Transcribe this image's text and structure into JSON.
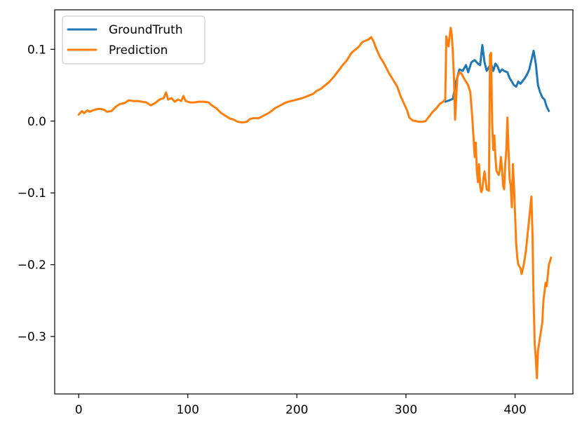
{
  "chart_data": {
    "type": "line",
    "title": "",
    "xlabel": "",
    "ylabel": "",
    "xlim": [
      -22,
      453
    ],
    "ylim": [
      -0.38,
      0.155
    ],
    "x_ticks": [
      0,
      100,
      200,
      300,
      400
    ],
    "x_tick_labels": [
      "0",
      "100",
      "200",
      "300",
      "400"
    ],
    "y_ticks": [
      0.1,
      0.0,
      -0.1,
      -0.2,
      -0.3
    ],
    "y_tick_labels": [
      "0.1",
      "0.0",
      "−0.1",
      "−0.2",
      "−0.3"
    ],
    "grid": false,
    "legend_position": "top-left",
    "series": [
      {
        "name": "GroundTruth",
        "color": "#1f77b4",
        "points": [
          [
            336,
            0.027
          ],
          [
            340,
            0.029
          ],
          [
            343,
            0.031
          ],
          [
            346,
            0.055
          ],
          [
            349,
            0.072
          ],
          [
            352,
            0.07
          ],
          [
            355,
            0.078
          ],
          [
            357,
            0.068
          ],
          [
            360,
            0.082
          ],
          [
            363,
            0.085
          ],
          [
            366,
            0.08
          ],
          [
            368,
            0.078
          ],
          [
            370,
            0.106
          ],
          [
            372,
            0.082
          ],
          [
            374,
            0.07
          ],
          [
            376,
            0.075
          ],
          [
            378,
            0.08
          ],
          [
            380,
            0.07
          ],
          [
            382,
            0.08
          ],
          [
            384,
            0.076
          ],
          [
            386,
            0.068
          ],
          [
            388,
            0.072
          ],
          [
            390,
            0.07
          ],
          [
            393,
            0.068
          ],
          [
            395,
            0.06
          ],
          [
            397,
            0.055
          ],
          [
            399,
            0.05
          ],
          [
            401,
            0.048
          ],
          [
            403,
            0.055
          ],
          [
            405,
            0.052
          ],
          [
            407,
            0.056
          ],
          [
            409,
            0.06
          ],
          [
            411,
            0.065
          ],
          [
            413,
            0.072
          ],
          [
            415,
            0.085
          ],
          [
            417,
            0.098
          ],
          [
            419,
            0.08
          ],
          [
            421,
            0.05
          ],
          [
            423,
            0.04
          ],
          [
            425,
            0.033
          ],
          [
            427,
            0.03
          ],
          [
            429,
            0.02
          ],
          [
            431,
            0.014
          ]
        ]
      },
      {
        "name": "Prediction",
        "color": "#ff7f0e",
        "points": [
          [
            0,
            0.009
          ],
          [
            3,
            0.014
          ],
          [
            5,
            0.011
          ],
          [
            8,
            0.015
          ],
          [
            10,
            0.013
          ],
          [
            13,
            0.015
          ],
          [
            15,
            0.016
          ],
          [
            18,
            0.017
          ],
          [
            20,
            0.017
          ],
          [
            23,
            0.016
          ],
          [
            26,
            0.013
          ],
          [
            30,
            0.014
          ],
          [
            34,
            0.02
          ],
          [
            38,
            0.024
          ],
          [
            42,
            0.025
          ],
          [
            46,
            0.029
          ],
          [
            50,
            0.028
          ],
          [
            54,
            0.028
          ],
          [
            58,
            0.027
          ],
          [
            62,
            0.026
          ],
          [
            66,
            0.022
          ],
          [
            70,
            0.025
          ],
          [
            74,
            0.03
          ],
          [
            78,
            0.032
          ],
          [
            80,
            0.04
          ],
          [
            82,
            0.03
          ],
          [
            85,
            0.032
          ],
          [
            88,
            0.027
          ],
          [
            91,
            0.03
          ],
          [
            94,
            0.028
          ],
          [
            96,
            0.035
          ],
          [
            98,
            0.028
          ],
          [
            102,
            0.026
          ],
          [
            106,
            0.026
          ],
          [
            110,
            0.027
          ],
          [
            115,
            0.027
          ],
          [
            119,
            0.026
          ],
          [
            122,
            0.022
          ],
          [
            126,
            0.018
          ],
          [
            130,
            0.012
          ],
          [
            134,
            0.008
          ],
          [
            138,
            0.004
          ],
          [
            142,
            0.002
          ],
          [
            146,
            -0.001
          ],
          [
            150,
            -0.002
          ],
          [
            154,
            -0.001
          ],
          [
            157,
            0.003
          ],
          [
            160,
            0.004
          ],
          [
            165,
            0.004
          ],
          [
            170,
            0.008
          ],
          [
            175,
            0.012
          ],
          [
            180,
            0.018
          ],
          [
            185,
            0.022
          ],
          [
            190,
            0.026
          ],
          [
            195,
            0.028
          ],
          [
            200,
            0.03
          ],
          [
            205,
            0.032
          ],
          [
            210,
            0.035
          ],
          [
            215,
            0.038
          ],
          [
            218,
            0.042
          ],
          [
            222,
            0.045
          ],
          [
            226,
            0.05
          ],
          [
            230,
            0.055
          ],
          [
            234,
            0.062
          ],
          [
            238,
            0.07
          ],
          [
            242,
            0.078
          ],
          [
            246,
            0.085
          ],
          [
            250,
            0.095
          ],
          [
            254,
            0.1
          ],
          [
            257,
            0.104
          ],
          [
            260,
            0.11
          ],
          [
            263,
            0.112
          ],
          [
            266,
            0.114
          ],
          [
            268,
            0.117
          ],
          [
            270,
            0.112
          ],
          [
            273,
            0.1
          ],
          [
            276,
            0.09
          ],
          [
            280,
            0.08
          ],
          [
            284,
            0.068
          ],
          [
            288,
            0.058
          ],
          [
            292,
            0.048
          ],
          [
            295,
            0.035
          ],
          [
            298,
            0.025
          ],
          [
            301,
            0.015
          ],
          [
            303,
            0.005
          ],
          [
            306,
            0.001
          ],
          [
            309,
            0.0
          ],
          [
            312,
            -0.001
          ],
          [
            315,
            -0.001
          ],
          [
            318,
            0.0
          ],
          [
            321,
            0.006
          ],
          [
            324,
            0.012
          ],
          [
            328,
            0.018
          ],
          [
            331,
            0.024
          ],
          [
            334,
            0.027
          ],
          [
            336,
            0.03
          ],
          [
            337,
            0.118
          ],
          [
            338,
            0.11
          ],
          [
            339,
            0.104
          ],
          [
            340,
            0.118
          ],
          [
            341,
            0.13
          ],
          [
            342,
            0.12
          ],
          [
            343,
            0.095
          ],
          [
            344,
            0.06
          ],
          [
            345,
            0.002
          ],
          [
            346,
            0.03
          ],
          [
            347,
            0.06
          ],
          [
            349,
            0.068
          ],
          [
            351,
            0.066
          ],
          [
            353,
            0.06
          ],
          [
            355,
            0.055
          ],
          [
            357,
            0.05
          ],
          [
            359,
            0.04
          ],
          [
            361,
            0.0
          ],
          [
            363,
            -0.05
          ],
          [
            364,
            -0.03
          ],
          [
            365,
            -0.07
          ],
          [
            366,
            -0.085
          ],
          [
            367,
            -0.06
          ],
          [
            368,
            -0.09
          ],
          [
            369,
            -0.099
          ],
          [
            370,
            -0.095
          ],
          [
            371,
            -0.08
          ],
          [
            372,
            -0.07
          ],
          [
            374,
            -0.095
          ],
          [
            376,
            -0.097
          ],
          [
            377,
            0.092
          ],
          [
            378,
            0.095
          ],
          [
            379,
            -0.001
          ],
          [
            380,
            -0.04
          ],
          [
            381,
            -0.02
          ],
          [
            382,
            -0.05
          ],
          [
            383,
            -0.07
          ],
          [
            384,
            -0.072
          ],
          [
            385,
            -0.075
          ],
          [
            386,
            -0.068
          ],
          [
            387,
            -0.05
          ],
          [
            388,
            -0.065
          ],
          [
            389,
            -0.09
          ],
          [
            390,
            -0.095
          ],
          [
            391,
            -0.06
          ],
          [
            392,
            -0.04
          ],
          [
            393,
            0.005
          ],
          [
            394,
            -0.04
          ],
          [
            395,
            -0.08
          ],
          [
            396,
            -0.09
          ],
          [
            397,
            -0.12
          ],
          [
            398,
            -0.06
          ],
          [
            399,
            -0.09
          ],
          [
            400,
            -0.13
          ],
          [
            401,
            -0.17
          ],
          [
            402,
            -0.19
          ],
          [
            403,
            -0.2
          ],
          [
            405,
            -0.205
          ],
          [
            406,
            -0.213
          ],
          [
            408,
            -0.2
          ],
          [
            410,
            -0.18
          ],
          [
            412,
            -0.15
          ],
          [
            414,
            -0.12
          ],
          [
            415,
            -0.105
          ],
          [
            416,
            -0.16
          ],
          [
            417,
            -0.25
          ],
          [
            418,
            -0.31
          ],
          [
            419,
            -0.33
          ],
          [
            420,
            -0.358
          ],
          [
            421,
            -0.32
          ],
          [
            422,
            -0.31
          ],
          [
            423,
            -0.3
          ],
          [
            425,
            -0.28
          ],
          [
            426,
            -0.25
          ],
          [
            428,
            -0.225
          ],
          [
            429,
            -0.23
          ],
          [
            431,
            -0.2
          ],
          [
            433,
            -0.19
          ]
        ]
      }
    ]
  }
}
